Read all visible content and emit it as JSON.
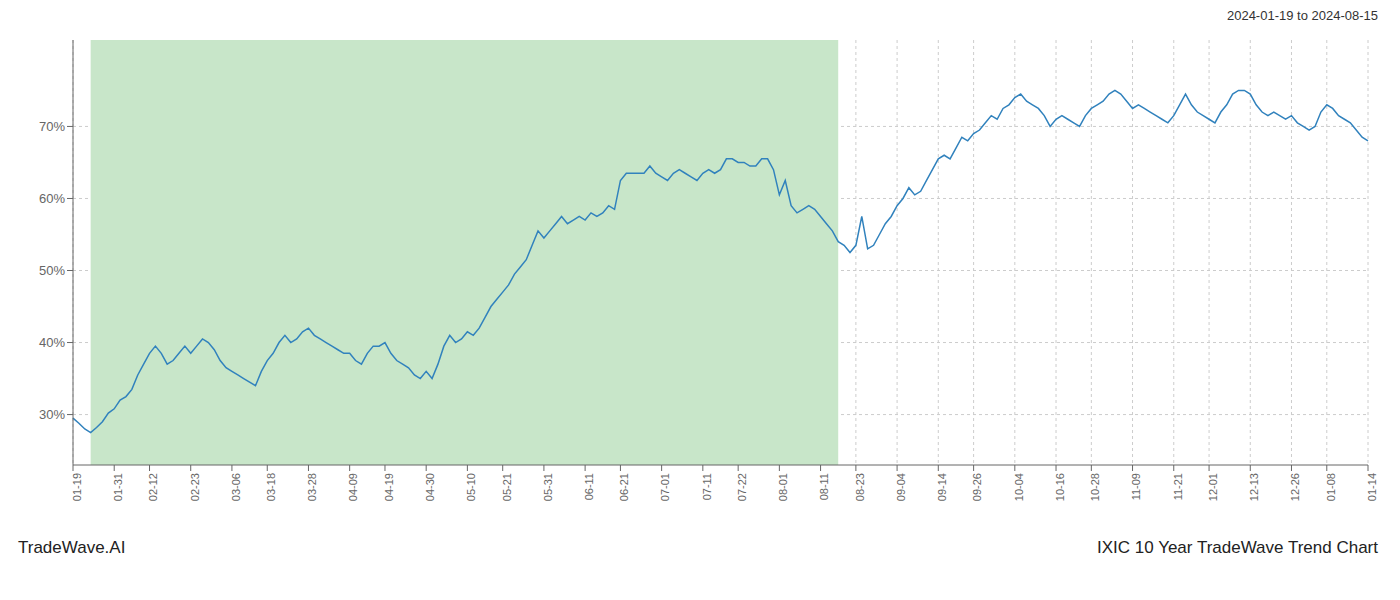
{
  "chart_data": {
    "type": "line",
    "title": "IXIC 10 Year TradeWave Trend Chart",
    "subtitle": "2024-01-19 to 2024-08-15",
    "annotations": [
      "TradeWave.AI"
    ],
    "categories": [
      "01-19",
      null,
      null,
      null,
      null,
      null,
      null,
      "01-31",
      null,
      null,
      null,
      null,
      null,
      "02-12",
      null,
      null,
      null,
      null,
      null,
      null,
      "02-23",
      null,
      null,
      null,
      null,
      null,
      null,
      "03-06",
      null,
      null,
      null,
      null,
      null,
      "03-18",
      null,
      null,
      null,
      null,
      null,
      null,
      "03-28",
      null,
      null,
      null,
      null,
      null,
      null,
      "04-09",
      null,
      null,
      null,
      null,
      null,
      "04-19",
      null,
      null,
      null,
      null,
      null,
      null,
      "04-30",
      null,
      null,
      null,
      null,
      null,
      null,
      "05-10",
      null,
      null,
      null,
      null,
      null,
      "05-21",
      null,
      null,
      null,
      null,
      null,
      null,
      "05-31",
      null,
      null,
      null,
      null,
      null,
      null,
      "06-11",
      null,
      null,
      null,
      null,
      null,
      "06-21",
      null,
      null,
      null,
      null,
      null,
      null,
      "07-01",
      null,
      null,
      null,
      null,
      null,
      null,
      "07-11",
      null,
      null,
      null,
      null,
      null,
      "07-22",
      null,
      null,
      null,
      null,
      null,
      null,
      "08-01",
      null,
      null,
      null,
      null,
      null,
      null,
      "08-11",
      null,
      null,
      null,
      null,
      null,
      "08-23",
      null,
      null,
      null,
      null,
      null,
      null,
      "09-04",
      null,
      null,
      null,
      null,
      null,
      null,
      "09-14",
      null,
      null,
      null,
      null,
      null,
      "09-26",
      null,
      null,
      null,
      null,
      null,
      null,
      "10-04",
      null,
      null,
      null,
      null,
      null,
      null,
      "10-16",
      null,
      null,
      null,
      null,
      null,
      "10-28",
      null,
      null,
      null,
      null,
      null,
      null,
      "11-09",
      null,
      null,
      null,
      null,
      null,
      null,
      "11-21",
      null,
      null,
      null,
      null,
      null,
      "12-01",
      null,
      null,
      null,
      null,
      null,
      null,
      "12-13",
      null,
      null,
      null,
      null,
      null,
      null,
      "12-26",
      null,
      null,
      null,
      null,
      null,
      "01-08",
      null,
      null,
      null,
      null,
      null,
      null,
      "01-14"
    ],
    "values": [
      29.5,
      28.8,
      28.0,
      27.5,
      28.2,
      29.0,
      30.2,
      30.8,
      32.0,
      32.5,
      33.5,
      35.5,
      37.0,
      38.5,
      39.5,
      38.5,
      37.0,
      37.5,
      38.5,
      39.5,
      38.5,
      39.5,
      40.5,
      40.0,
      39.0,
      37.5,
      36.5,
      36.0,
      35.5,
      35.0,
      34.5,
      34.0,
      36.0,
      37.5,
      38.5,
      40.0,
      41.0,
      40.0,
      40.5,
      41.5,
      42.0,
      41.0,
      40.5,
      40.0,
      39.5,
      39.0,
      38.5,
      38.5,
      37.5,
      37.0,
      38.5,
      39.5,
      39.5,
      40.0,
      38.5,
      37.5,
      37.0,
      36.5,
      35.5,
      35.0,
      36.0,
      35.0,
      37.0,
      39.5,
      41.0,
      40.0,
      40.5,
      41.5,
      41.0,
      42.0,
      43.5,
      45.0,
      46.0,
      47.0,
      48.0,
      49.5,
      50.5,
      51.5,
      53.5,
      55.5,
      54.5,
      55.5,
      56.5,
      57.5,
      56.5,
      57.0,
      57.5,
      57.0,
      58.0,
      57.5,
      58.0,
      59.0,
      58.5,
      62.5,
      63.5,
      63.5,
      63.5,
      63.5,
      64.5,
      63.5,
      63.0,
      62.5,
      63.5,
      64.0,
      63.5,
      63.0,
      62.5,
      63.5,
      64.0,
      63.5,
      64.0,
      65.5,
      65.5,
      65.0,
      65.0,
      64.5,
      64.5,
      65.5,
      65.5,
      64.0,
      60.5,
      62.5,
      59.0,
      58.0,
      58.5,
      59.0,
      58.5,
      57.5,
      56.5,
      55.5,
      54.0,
      53.5,
      52.5,
      53.5,
      57.5,
      53.0,
      53.5,
      55.0,
      56.5,
      57.5,
      59.0,
      60.0,
      61.5,
      60.5,
      61.0,
      62.5,
      64.0,
      65.5,
      66.0,
      65.5,
      67.0,
      68.5,
      68.0,
      69.0,
      69.5,
      70.5,
      71.5,
      71.0,
      72.5,
      73.0,
      74.0,
      74.5,
      73.5,
      73.0,
      72.5,
      71.5,
      70.0,
      71.0,
      71.5,
      71.0,
      70.5,
      70.0,
      71.5,
      72.5,
      73.0,
      73.5,
      74.5,
      75.0,
      74.5,
      73.5,
      72.5,
      73.0,
      72.5,
      72.0,
      71.5,
      71.0,
      70.5,
      71.5,
      73.0,
      74.5,
      73.0,
      72.0,
      71.5,
      71.0,
      70.5,
      72.0,
      73.0,
      74.5,
      75.0,
      75.0,
      74.5,
      73.0,
      72.0,
      71.5,
      72.0,
      71.5,
      71.0,
      71.5,
      70.5,
      70.0,
      69.5,
      70.0,
      72.0,
      73.0,
      72.5,
      71.5,
      71.0,
      70.5,
      69.5,
      68.5,
      68.0
    ],
    "ylim": [
      23,
      82
    ],
    "yticks": [
      {
        "value": 30,
        "label": "30%"
      },
      {
        "value": 40,
        "label": "40%"
      },
      {
        "value": 50,
        "label": "50%"
      },
      {
        "value": 60,
        "label": "60%"
      },
      {
        "value": 70,
        "label": "70%"
      }
    ],
    "grid": true,
    "shade": {
      "start": 3,
      "end": 130,
      "color": "#c8e6c9"
    }
  }
}
